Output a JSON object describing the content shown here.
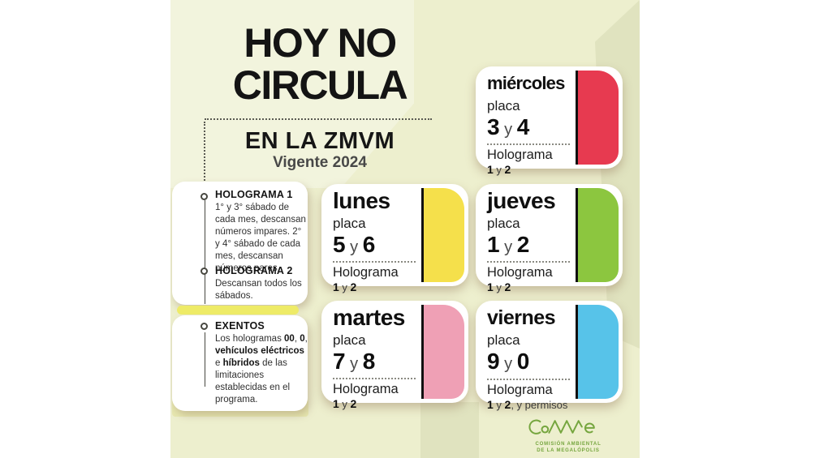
{
  "colors": {
    "background": "#edefce",
    "card_red": "#e73a50",
    "card_yellow": "#f5e04b",
    "card_green": "#8cc63f",
    "card_pink": "#efa0b5",
    "card_blue": "#57c3e9",
    "divider_yellow": "#eeeb67",
    "logo_green": "#76a63f"
  },
  "title": {
    "line1": "HOY NO",
    "line2": "CIRCULA",
    "region": "EN LA ZMVM",
    "validity": "Vigente 2024"
  },
  "sidebar": {
    "holograma1": {
      "heading": "HOLOGRAMA 1",
      "body": "1° y 3° sábado de cada mes, descansan números impares. 2° y 4° sábado de cada mes, descansan números pares."
    },
    "holograma2": {
      "heading": "HOLOGRAMA 2",
      "body": "Descansan todos los sábados."
    },
    "exentos": {
      "heading": "EXENTOS",
      "segments": [
        {
          "t": "Los hologramas ",
          "b": false
        },
        {
          "t": "00",
          "b": true
        },
        {
          "t": ", ",
          "b": false
        },
        {
          "t": "0",
          "b": true
        },
        {
          "t": ", ",
          "b": false
        },
        {
          "t": "vehículos eléctricos",
          "b": true
        },
        {
          "t": " e ",
          "b": false
        },
        {
          "t": "híbridos",
          "b": true
        },
        {
          "t": " de las limitaciones establecidas en el programa.",
          "b": false
        }
      ]
    }
  },
  "cards": [
    {
      "day": "miércoles",
      "placa_label": "placa",
      "holo_label": "Holograma",
      "plates": [
        {
          "t": "3",
          "b": true
        },
        {
          "t": " y ",
          "b": false
        },
        {
          "t": "4",
          "b": true
        }
      ],
      "holo": [
        {
          "t": "1",
          "b": true
        },
        {
          "t": " y ",
          "b": false
        },
        {
          "t": "2",
          "b": true
        }
      ],
      "color": "#e73a50"
    },
    {
      "day": "lunes",
      "placa_label": "placa",
      "holo_label": "Holograma",
      "plates": [
        {
          "t": "5",
          "b": true
        },
        {
          "t": " y ",
          "b": false
        },
        {
          "t": "6",
          "b": true
        }
      ],
      "holo": [
        {
          "t": "1",
          "b": true
        },
        {
          "t": " y ",
          "b": false
        },
        {
          "t": "2",
          "b": true
        }
      ],
      "color": "#f5e04b"
    },
    {
      "day": "jueves",
      "placa_label": "placa",
      "holo_label": "Holograma",
      "plates": [
        {
          "t": "1",
          "b": true
        },
        {
          "t": " y ",
          "b": false
        },
        {
          "t": "2",
          "b": true
        }
      ],
      "holo": [
        {
          "t": "1",
          "b": true
        },
        {
          "t": " y ",
          "b": false
        },
        {
          "t": "2",
          "b": true
        }
      ],
      "color": "#8cc63f"
    },
    {
      "day": "martes",
      "placa_label": "placa",
      "holo_label": "Holograma",
      "plates": [
        {
          "t": "7",
          "b": true
        },
        {
          "t": " y ",
          "b": false
        },
        {
          "t": "8",
          "b": true
        }
      ],
      "holo": [
        {
          "t": "1",
          "b": true
        },
        {
          "t": " y ",
          "b": false
        },
        {
          "t": "2",
          "b": true
        }
      ],
      "color": "#efa0b5"
    },
    {
      "day": "viernes",
      "placa_label": "placa",
      "holo_label": "Holograma",
      "plates": [
        {
          "t": "9",
          "b": true
        },
        {
          "t": " y ",
          "b": false
        },
        {
          "t": "0",
          "b": true
        }
      ],
      "holo": [
        {
          "t": "1",
          "b": true
        },
        {
          "t": " y ",
          "b": false
        },
        {
          "t": "2",
          "b": true
        },
        {
          "t": ", y permisos",
          "b": false
        }
      ],
      "color": "#57c3e9"
    }
  ],
  "logo": {
    "wordmark": "CAMe",
    "caption_line1": "COMISIÓN AMBIENTAL",
    "caption_line2": "DE LA MEGALÓPOLIS"
  }
}
